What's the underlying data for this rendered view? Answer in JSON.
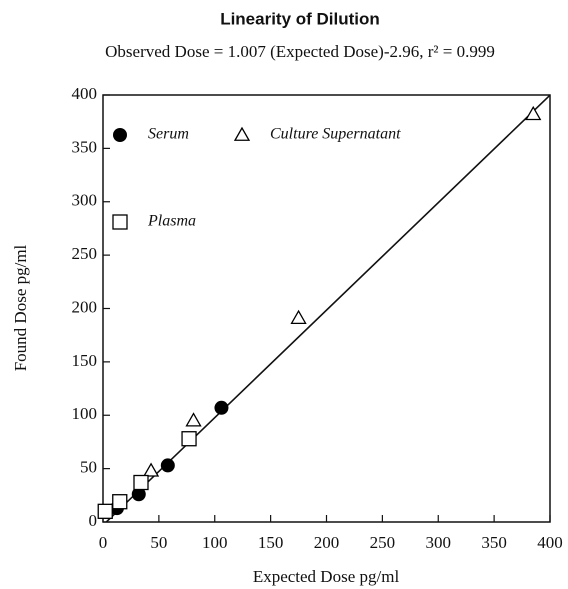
{
  "chart_data": {
    "type": "scatter",
    "title": "Linearity of Dilution",
    "subtitle": "Observed Dose = 1.007 (Expected Dose)-2.96, r² = 0.999",
    "x_label": "Expected Dose pg/ml",
    "y_label": "Found Dose pg/ml",
    "xlim": [
      0,
      400
    ],
    "ylim": [
      0,
      400
    ],
    "xticks": [
      0,
      50,
      100,
      150,
      200,
      250,
      300,
      350,
      400
    ],
    "yticks": [
      0,
      50,
      100,
      150,
      200,
      250,
      300,
      350,
      400
    ],
    "fit_line": {
      "slope": 1.007,
      "intercept": -2.96
    },
    "series": [
      {
        "name": "Serum",
        "color": "#000000",
        "marker": "circle",
        "x": [
          12.5,
          32,
          58,
          106
        ],
        "values": [
          13,
          26,
          53,
          107
        ]
      },
      {
        "name": "Culture Supernatant",
        "color": "#000000",
        "marker": "triangle",
        "x": [
          43,
          81,
          175,
          385
        ],
        "values": [
          48,
          95,
          191,
          382
        ]
      },
      {
        "name": "Plasma",
        "color": "#000000",
        "marker": "square",
        "x": [
          2,
          15,
          34,
          77
        ],
        "values": [
          10,
          19,
          37,
          78
        ]
      }
    ]
  }
}
